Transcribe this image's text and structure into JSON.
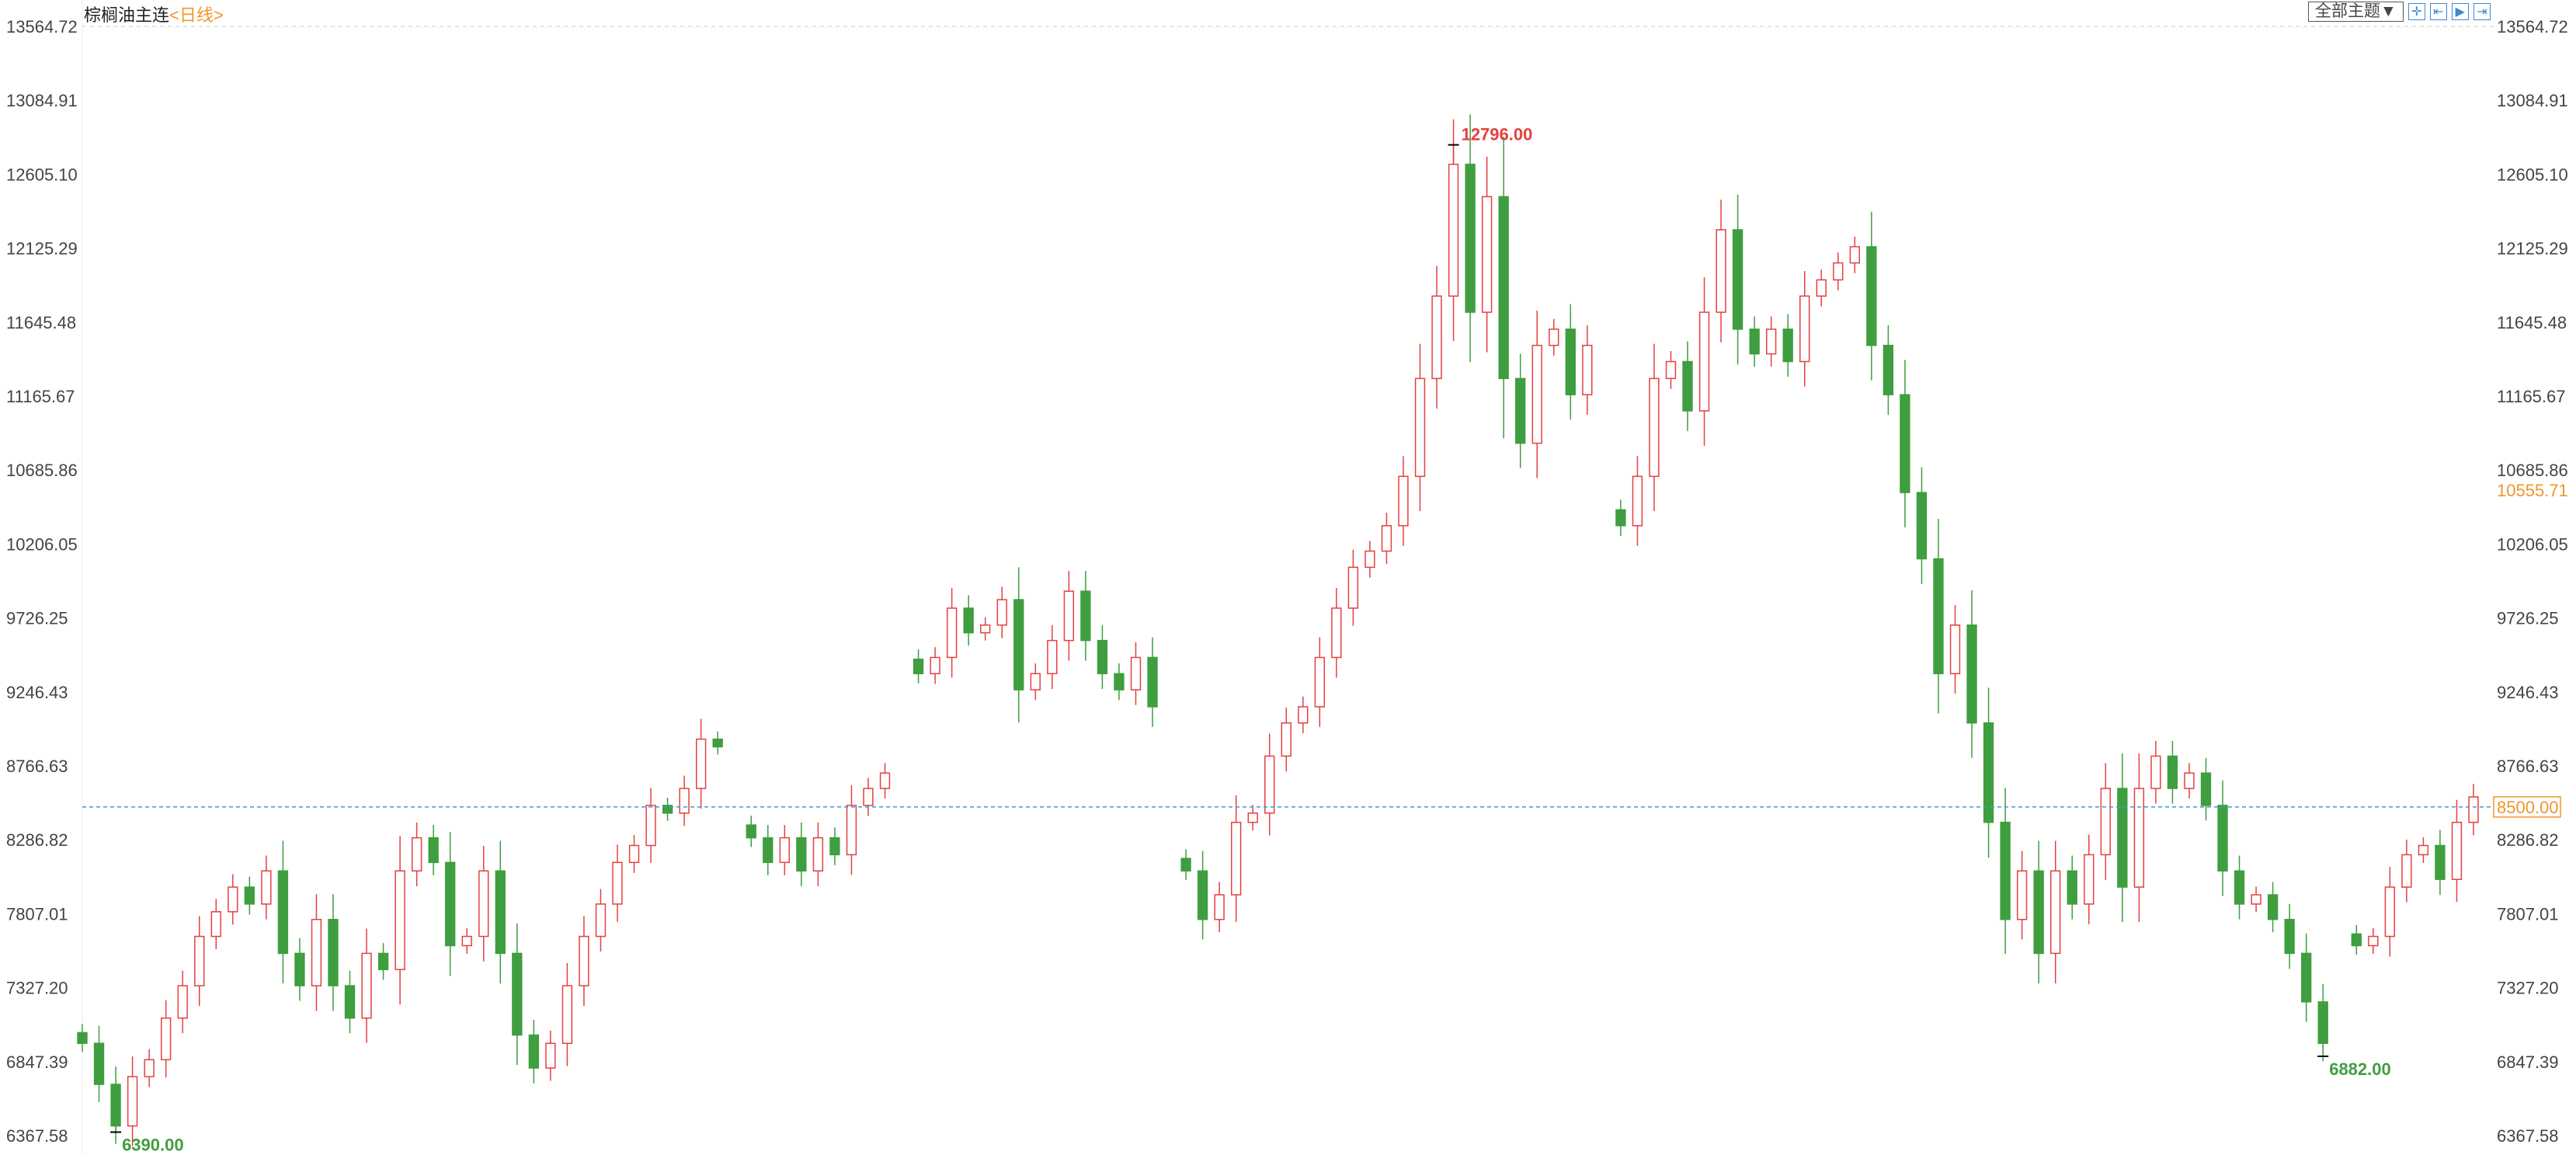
{
  "header": {
    "symbol": "棕榈油主连",
    "period": "<日线>",
    "theme_button": "全部主题▼",
    "tool_icons": [
      "crosshair-icon",
      "range-icon",
      "play-icon",
      "exit-icon"
    ]
  },
  "colors": {
    "up": "#e5403f",
    "down": "#3f9e3f",
    "ref_line": "#3a9ad8",
    "accent": "#f0952a"
  },
  "chart_data": {
    "type": "candlestick",
    "title": "",
    "ylim": [
      6367.58,
      13564.72
    ],
    "yticks": [
      "13564.72",
      "13084.91",
      "12605.10",
      "12125.29",
      "11645.48",
      "11165.67",
      "10685.86",
      "10206.05",
      "9726.25",
      "9246.43",
      "8766.63",
      "8286.82",
      "7807.01",
      "7327.20",
      "6847.39",
      "6367.58"
    ],
    "closes": [
      6966,
      6700,
      6430,
      6750,
      6860,
      7130,
      7340,
      7660,
      7820,
      7980,
      7870,
      8085,
      7550,
      7340,
      7770,
      7340,
      7130,
      7550,
      7445,
      8085,
      8300,
      8140,
      7600,
      7660,
      8085,
      7550,
      7020,
      6806,
      6966,
      7340,
      7660,
      7870,
      8140,
      8250,
      8510,
      8460,
      8620,
      8940,
      8890,
      null,
      8300,
      8140,
      8300,
      8085,
      8300,
      8190,
      8510,
      8620,
      8720,
      null,
      9365,
      9470,
      9790,
      9630,
      9680,
      9845,
      9260,
      9365,
      9580,
      9900,
      9580,
      9365,
      9260,
      9470,
      9150,
      null,
      8085,
      7770,
      7930,
      8400,
      8460,
      8830,
      9045,
      9150,
      9470,
      9790,
      10055,
      10160,
      10325,
      10645,
      11280,
      11815,
      12670,
      11710,
      12460,
      11280,
      10860,
      11495,
      11600,
      11175,
      11495,
      null,
      10325,
      10645,
      11280,
      11390,
      11070,
      11710,
      12245,
      11600,
      11440,
      11600,
      11390,
      11815,
      11920,
      12030,
      12135,
      11495,
      11175,
      10540,
      10110,
      9365,
      9680,
      9045,
      8400,
      7770,
      8085,
      7550,
      8085,
      7870,
      8190,
      8620,
      7980,
      8620,
      8830,
      8620,
      8720,
      8510,
      8085,
      7870,
      7930,
      7770,
      7550,
      7235,
      6966,
      null,
      7600,
      7660,
      7980,
      8190,
      8250,
      8030,
      8400,
      8565
    ],
    "max_label": "12796.00",
    "max_value": 12796,
    "min_labels": [
      {
        "text": "6390.00",
        "value": 6390
      },
      {
        "text": "6882.00",
        "value": 6882
      }
    ],
    "reference_line": {
      "value": 8500,
      "label": "8500.00"
    },
    "right_marker": {
      "value": 10555.71,
      "label": "10555.71"
    }
  }
}
